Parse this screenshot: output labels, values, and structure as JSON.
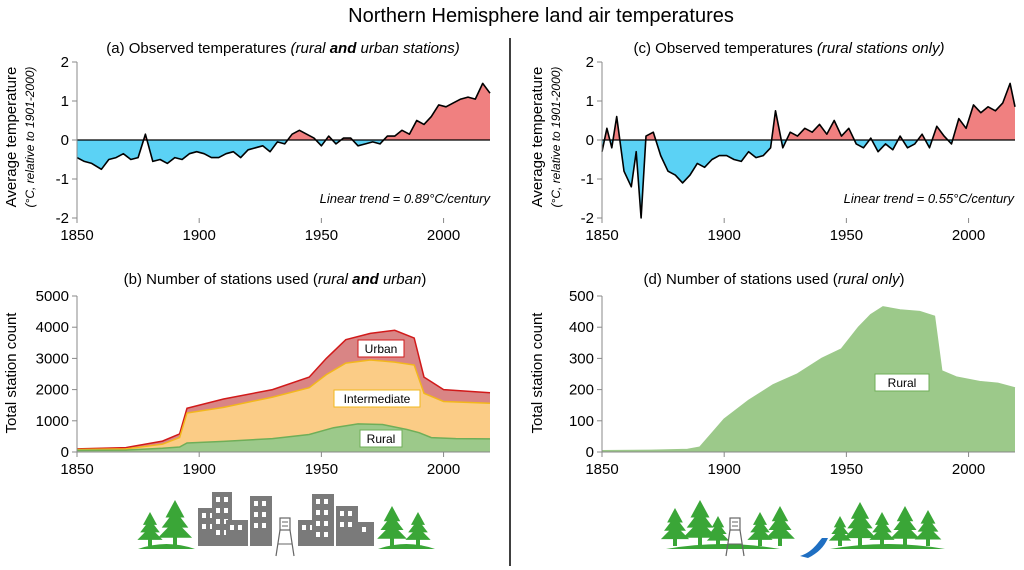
{
  "title": "Northern Hemisphere land air temperatures",
  "panel_a": {
    "title_prefix": "(a) Observed temperatures ",
    "title_paren_open": "(",
    "title_rural": "rural ",
    "title_and": "and",
    "title_urban": " urban stations)",
    "ylabel": "Average temperature",
    "ylabel_sub": "(°C, relative to 1901-2000)",
    "trend": "Linear trend = 0.89°C/century"
  },
  "panel_b": {
    "title_prefix": "(b) Number of stations used (",
    "title_rural": "rural ",
    "title_and": "and",
    "title_urban": " urban",
    "title_suffix": ")",
    "ylabel": "Total station count",
    "labels": {
      "urban": "Urban",
      "intermediate": "Intermediate",
      "rural": "Rural"
    }
  },
  "panel_c": {
    "title_prefix": "(c) Observed temperatures ",
    "title_italic": "(rural stations only)",
    "ylabel": "Average temperature",
    "ylabel_sub": "(°C, relative to 1901-2000)",
    "trend": "Linear trend = 0.55°C/century"
  },
  "panel_d": {
    "title_prefix": "(d) Number of stations used (",
    "title_italic": "rural only",
    "title_suffix": ")",
    "ylabel": "Total station count",
    "label_rural": "Rural"
  },
  "colors": {
    "warm": "#f08080",
    "cool": "#5bd2f5",
    "urban_fill": "#d98585",
    "urban_line": "#d11a1a",
    "intermediate_fill": "#fbcc86",
    "intermediate_line": "#f2b71c",
    "rural_fill": "#9cc98a",
    "rural_line": "#6fae58",
    "tree": "#3aa637",
    "building": "#7a7a7a",
    "river": "#1f6fc2"
  },
  "chart_data": [
    {
      "type": "area",
      "panel": "a",
      "xlim": [
        1850,
        2019
      ],
      "ylim": [
        -2,
        2
      ],
      "xticks": [
        1850,
        1900,
        1950,
        2000
      ],
      "yticks": [
        -2,
        -1,
        0,
        1,
        2
      ],
      "series": [
        {
          "values": [
            [
              1850,
              -0.45
            ],
            [
              1853,
              -0.55
            ],
            [
              1856,
              -0.6
            ],
            [
              1860,
              -0.75
            ],
            [
              1863,
              -0.5
            ],
            [
              1866,
              -0.45
            ],
            [
              1869,
              -0.35
            ],
            [
              1872,
              -0.5
            ],
            [
              1875,
              -0.45
            ],
            [
              1878,
              0.15
            ],
            [
              1881,
              -0.55
            ],
            [
              1884,
              -0.5
            ],
            [
              1887,
              -0.6
            ],
            [
              1890,
              -0.45
            ],
            [
              1893,
              -0.5
            ],
            [
              1896,
              -0.35
            ],
            [
              1899,
              -0.3
            ],
            [
              1902,
              -0.35
            ],
            [
              1905,
              -0.45
            ],
            [
              1908,
              -0.45
            ],
            [
              1911,
              -0.35
            ],
            [
              1914,
              -0.3
            ],
            [
              1917,
              -0.45
            ],
            [
              1920,
              -0.25
            ],
            [
              1923,
              -0.2
            ],
            [
              1926,
              -0.15
            ],
            [
              1929,
              -0.3
            ],
            [
              1932,
              -0.05
            ],
            [
              1935,
              -0.1
            ],
            [
              1938,
              0.15
            ],
            [
              1941,
              0.25
            ],
            [
              1944,
              0.15
            ],
            [
              1947,
              0.05
            ],
            [
              1950,
              -0.15
            ],
            [
              1953,
              0.1
            ],
            [
              1956,
              -0.1
            ],
            [
              1959,
              0.05
            ],
            [
              1962,
              0.05
            ],
            [
              1965,
              -0.15
            ],
            [
              1968,
              -0.1
            ],
            [
              1971,
              -0.05
            ],
            [
              1974,
              -0.1
            ],
            [
              1977,
              0.1
            ],
            [
              1980,
              0.1
            ],
            [
              1983,
              0.25
            ],
            [
              1986,
              0.15
            ],
            [
              1989,
              0.5
            ],
            [
              1992,
              0.4
            ],
            [
              1995,
              0.6
            ],
            [
              1998,
              0.9
            ],
            [
              2001,
              0.85
            ],
            [
              2004,
              0.95
            ],
            [
              2007,
              1.05
            ],
            [
              2010,
              1.1
            ],
            [
              2013,
              1.05
            ],
            [
              2016,
              1.45
            ],
            [
              2019,
              1.2
            ]
          ]
        }
      ],
      "text": "Linear trend = 0.89°C/century"
    },
    {
      "type": "area",
      "panel": "b",
      "xlim": [
        1850,
        2019
      ],
      "ylim": [
        0,
        5000
      ],
      "xticks": [
        1850,
        1900,
        1950,
        2000
      ],
      "yticks": [
        0,
        1000,
        2000,
        3000,
        4000,
        5000
      ],
      "series": [
        {
          "name": "Rural",
          "values": [
            [
              1850,
              50
            ],
            [
              1870,
              60
            ],
            [
              1885,
              120
            ],
            [
              1892,
              160
            ],
            [
              1895,
              290
            ],
            [
              1910,
              340
            ],
            [
              1930,
              430
            ],
            [
              1945,
              560
            ],
            [
              1955,
              780
            ],
            [
              1965,
              900
            ],
            [
              1975,
              880
            ],
            [
              1985,
              720
            ],
            [
              1990,
              620
            ],
            [
              1995,
              460
            ],
            [
              2005,
              430
            ],
            [
              2019,
              420
            ]
          ]
        },
        {
          "name": "Intermediate",
          "values": [
            [
              1850,
              80
            ],
            [
              1870,
              100
            ],
            [
              1885,
              250
            ],
            [
              1892,
              460
            ],
            [
              1895,
              1250
            ],
            [
              1910,
              1430
            ],
            [
              1930,
              1760
            ],
            [
              1945,
              2060
            ],
            [
              1952,
              2480
            ],
            [
              1960,
              2850
            ],
            [
              1970,
              2950
            ],
            [
              1980,
              2880
            ],
            [
              1988,
              2790
            ],
            [
              1992,
              1880
            ],
            [
              2000,
              1620
            ],
            [
              2019,
              1560
            ]
          ]
        },
        {
          "name": "Urban",
          "values": [
            [
              1850,
              100
            ],
            [
              1870,
              140
            ],
            [
              1885,
              350
            ],
            [
              1892,
              580
            ],
            [
              1895,
              1400
            ],
            [
              1910,
              1700
            ],
            [
              1930,
              2000
            ],
            [
              1945,
              2400
            ],
            [
              1952,
              3000
            ],
            [
              1960,
              3600
            ],
            [
              1970,
              3800
            ],
            [
              1980,
              3900
            ],
            [
              1988,
              3650
            ],
            [
              1992,
              2400
            ],
            [
              2000,
              2000
            ],
            [
              2019,
              1900
            ]
          ]
        }
      ]
    },
    {
      "type": "area",
      "panel": "c",
      "xlim": [
        1850,
        2019
      ],
      "ylim": [
        -2,
        2
      ],
      "xticks": [
        1850,
        1900,
        1950,
        2000
      ],
      "yticks": [
        -2,
        -1,
        0,
        1,
        2
      ],
      "series": [
        {
          "values": [
            [
              1850,
              -0.3
            ],
            [
              1852,
              0.3
            ],
            [
              1854,
              -0.2
            ],
            [
              1856,
              0.6
            ],
            [
              1859,
              -0.8
            ],
            [
              1862,
              -1.2
            ],
            [
              1864,
              -0.3
            ],
            [
              1866,
              -2.0
            ],
            [
              1868,
              0.1
            ],
            [
              1871,
              0.2
            ],
            [
              1874,
              -0.4
            ],
            [
              1877,
              -0.8
            ],
            [
              1880,
              -0.9
            ],
            [
              1883,
              -1.1
            ],
            [
              1886,
              -0.9
            ],
            [
              1889,
              -0.6
            ],
            [
              1892,
              -0.7
            ],
            [
              1895,
              -0.5
            ],
            [
              1898,
              -0.4
            ],
            [
              1901,
              -0.4
            ],
            [
              1904,
              -0.5
            ],
            [
              1907,
              -0.55
            ],
            [
              1910,
              -0.3
            ],
            [
              1913,
              -0.45
            ],
            [
              1916,
              -0.4
            ],
            [
              1919,
              -0.2
            ],
            [
              1921,
              0.75
            ],
            [
              1924,
              -0.2
            ],
            [
              1927,
              0.2
            ],
            [
              1930,
              0.1
            ],
            [
              1933,
              0.3
            ],
            [
              1936,
              0.2
            ],
            [
              1939,
              0.4
            ],
            [
              1942,
              0.15
            ],
            [
              1945,
              0.5
            ],
            [
              1948,
              0.1
            ],
            [
              1951,
              0.3
            ],
            [
              1954,
              -0.1
            ],
            [
              1957,
              -0.2
            ],
            [
              1960,
              0.05
            ],
            [
              1963,
              -0.3
            ],
            [
              1966,
              -0.1
            ],
            [
              1969,
              -0.25
            ],
            [
              1972,
              0.1
            ],
            [
              1975,
              -0.2
            ],
            [
              1978,
              -0.1
            ],
            [
              1981,
              0.15
            ],
            [
              1984,
              -0.2
            ],
            [
              1987,
              0.35
            ],
            [
              1990,
              0.1
            ],
            [
              1993,
              -0.1
            ],
            [
              1996,
              0.55
            ],
            [
              1999,
              0.3
            ],
            [
              2002,
              0.9
            ],
            [
              2005,
              0.7
            ],
            [
              2008,
              0.85
            ],
            [
              2011,
              0.75
            ],
            [
              2014,
              0.95
            ],
            [
              2017,
              1.45
            ],
            [
              2019,
              0.85
            ]
          ]
        }
      ],
      "text": "Linear trend = 0.55°C/century"
    },
    {
      "type": "area",
      "panel": "d",
      "xlim": [
        1850,
        2019
      ],
      "ylim": [
        0,
        500
      ],
      "xticks": [
        1850,
        1900,
        1950,
        2000
      ],
      "yticks": [
        0,
        100,
        200,
        300,
        400,
        500
      ],
      "series": [
        {
          "name": "Rural",
          "values": [
            [
              1850,
              4
            ],
            [
              1870,
              5
            ],
            [
              1885,
              8
            ],
            [
              1890,
              15
            ],
            [
              1895,
              60
            ],
            [
              1900,
              105
            ],
            [
              1905,
              135
            ],
            [
              1910,
              165
            ],
            [
              1920,
              215
            ],
            [
              1930,
              250
            ],
            [
              1940,
              300
            ],
            [
              1948,
              330
            ],
            [
              1955,
              400
            ],
            [
              1960,
              440
            ],
            [
              1965,
              465
            ],
            [
              1972,
              455
            ],
            [
              1980,
              450
            ],
            [
              1986,
              435
            ],
            [
              1989,
              260
            ],
            [
              1995,
              240
            ],
            [
              2005,
              225
            ],
            [
              2012,
              220
            ],
            [
              2019,
              205
            ]
          ]
        }
      ]
    }
  ]
}
